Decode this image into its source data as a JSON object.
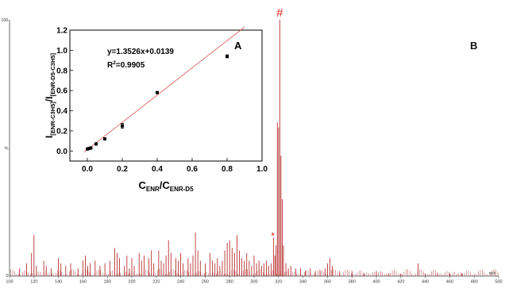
{
  "chart_data": [
    {
      "type": "bar",
      "panel_label": "B",
      "xunit": "m/z",
      "xlim": [
        100,
        500
      ],
      "ylim": [
        0,
        100
      ],
      "x_ticks": [
        100,
        120,
        140,
        160,
        180,
        200,
        220,
        240,
        260,
        280,
        300,
        320,
        340,
        360,
        380,
        400,
        420,
        440,
        460,
        480,
        500
      ],
      "y_tick_labels": [
        "100",
        "%",
        "0"
      ],
      "markers": [
        {
          "symbol": "#",
          "x": 321,
          "y": 100
        },
        {
          "symbol": "*",
          "x": 316,
          "y": 15
        }
      ],
      "peaks": [
        {
          "x": 108,
          "y": 3
        },
        {
          "x": 114,
          "y": 5
        },
        {
          "x": 118,
          "y": 9
        },
        {
          "x": 120,
          "y": 16
        },
        {
          "x": 122,
          "y": 4
        },
        {
          "x": 128,
          "y": 6
        },
        {
          "x": 130,
          "y": 4
        },
        {
          "x": 134,
          "y": 3
        },
        {
          "x": 140,
          "y": 7
        },
        {
          "x": 142,
          "y": 5
        },
        {
          "x": 146,
          "y": 4
        },
        {
          "x": 150,
          "y": 5
        },
        {
          "x": 156,
          "y": 3
        },
        {
          "x": 160,
          "y": 6
        },
        {
          "x": 162,
          "y": 8
        },
        {
          "x": 164,
          "y": 4
        },
        {
          "x": 166,
          "y": 5
        },
        {
          "x": 170,
          "y": 6
        },
        {
          "x": 174,
          "y": 4
        },
        {
          "x": 178,
          "y": 5
        },
        {
          "x": 182,
          "y": 6
        },
        {
          "x": 186,
          "y": 11
        },
        {
          "x": 188,
          "y": 9
        },
        {
          "x": 190,
          "y": 7
        },
        {
          "x": 194,
          "y": 4
        },
        {
          "x": 196,
          "y": 8
        },
        {
          "x": 198,
          "y": 3
        },
        {
          "x": 200,
          "y": 7
        },
        {
          "x": 202,
          "y": 4
        },
        {
          "x": 206,
          "y": 9
        },
        {
          "x": 208,
          "y": 6
        },
        {
          "x": 210,
          "y": 8
        },
        {
          "x": 214,
          "y": 7
        },
        {
          "x": 216,
          "y": 10
        },
        {
          "x": 218,
          "y": 5
        },
        {
          "x": 222,
          "y": 10
        },
        {
          "x": 224,
          "y": 6
        },
        {
          "x": 226,
          "y": 5
        },
        {
          "x": 228,
          "y": 8
        },
        {
          "x": 230,
          "y": 14
        },
        {
          "x": 232,
          "y": 9
        },
        {
          "x": 236,
          "y": 7
        },
        {
          "x": 238,
          "y": 6
        },
        {
          "x": 240,
          "y": 9
        },
        {
          "x": 242,
          "y": 5
        },
        {
          "x": 246,
          "y": 7
        },
        {
          "x": 248,
          "y": 5
        },
        {
          "x": 250,
          "y": 8
        },
        {
          "x": 252,
          "y": 17
        },
        {
          "x": 254,
          "y": 10
        },
        {
          "x": 256,
          "y": 6
        },
        {
          "x": 260,
          "y": 5
        },
        {
          "x": 264,
          "y": 9
        },
        {
          "x": 266,
          "y": 6
        },
        {
          "x": 268,
          "y": 5
        },
        {
          "x": 270,
          "y": 7
        },
        {
          "x": 272,
          "y": 4
        },
        {
          "x": 274,
          "y": 6
        },
        {
          "x": 276,
          "y": 10
        },
        {
          "x": 278,
          "y": 13
        },
        {
          "x": 280,
          "y": 14
        },
        {
          "x": 282,
          "y": 11
        },
        {
          "x": 284,
          "y": 9
        },
        {
          "x": 286,
          "y": 16
        },
        {
          "x": 288,
          "y": 10
        },
        {
          "x": 290,
          "y": 7
        },
        {
          "x": 292,
          "y": 6
        },
        {
          "x": 294,
          "y": 9
        },
        {
          "x": 296,
          "y": 6
        },
        {
          "x": 298,
          "y": 4
        },
        {
          "x": 300,
          "y": 8
        },
        {
          "x": 302,
          "y": 5
        },
        {
          "x": 304,
          "y": 6
        },
        {
          "x": 306,
          "y": 4
        },
        {
          "x": 308,
          "y": 5
        },
        {
          "x": 310,
          "y": 6
        },
        {
          "x": 312,
          "y": 4
        },
        {
          "x": 314,
          "y": 5
        },
        {
          "x": 316,
          "y": 15
        },
        {
          "x": 317,
          "y": 8
        },
        {
          "x": 318,
          "y": 12
        },
        {
          "x": 319,
          "y": 60
        },
        {
          "x": 320,
          "y": 58
        },
        {
          "x": 321,
          "y": 100
        },
        {
          "x": 322,
          "y": 47
        },
        {
          "x": 323,
          "y": 30
        },
        {
          "x": 324,
          "y": 12
        },
        {
          "x": 326,
          "y": 5
        },
        {
          "x": 328,
          "y": 3
        },
        {
          "x": 330,
          "y": 4
        },
        {
          "x": 334,
          "y": 3
        },
        {
          "x": 338,
          "y": 3
        },
        {
          "x": 342,
          "y": 2
        },
        {
          "x": 346,
          "y": 3
        },
        {
          "x": 350,
          "y": 2
        },
        {
          "x": 354,
          "y": 2
        },
        {
          "x": 358,
          "y": 3
        },
        {
          "x": 360,
          "y": 5
        },
        {
          "x": 362,
          "y": 7
        },
        {
          "x": 364,
          "y": 4
        },
        {
          "x": 370,
          "y": 2
        },
        {
          "x": 380,
          "y": 2
        },
        {
          "x": 390,
          "y": 1
        },
        {
          "x": 400,
          "y": 2
        },
        {
          "x": 410,
          "y": 1
        },
        {
          "x": 420,
          "y": 1
        },
        {
          "x": 434,
          "y": 5
        },
        {
          "x": 440,
          "y": 1
        },
        {
          "x": 450,
          "y": 1
        },
        {
          "x": 460,
          "y": 1
        },
        {
          "x": 470,
          "y": 1
        }
      ]
    },
    {
      "type": "scatter",
      "panel_label": "A",
      "xlabel": {
        "main": "C",
        "sub1": "ENR",
        "mid": "/C",
        "sub2": "ENR-D5"
      },
      "ylabel": {
        "main1": "I",
        "sub1": "[ENR-C3H5]",
        "mid": "/I",
        "sub2": "[ENR-D5-C3H5]"
      },
      "xlim": [
        -0.1,
        1.0
      ],
      "ylim": [
        -0.1,
        1.2
      ],
      "x_ticks": [
        "0.0",
        "0.2",
        "0.4",
        "0.6",
        "0.8",
        "1.0"
      ],
      "y_ticks": [
        "0.0",
        "0.2",
        "0.4",
        "0.6",
        "0.8",
        "1.0",
        "1.2"
      ],
      "equation": "y=1.3526x+0.0139",
      "r2_label": {
        "main": "R",
        "sup": "2",
        "value": "=0.9905"
      },
      "fit": {
        "slope": 1.3526,
        "intercept": 0.0139
      },
      "points": [
        {
          "x": 0.0,
          "y": 0.02,
          "err": 0.005
        },
        {
          "x": 0.01,
          "y": 0.025,
          "err": 0.005
        },
        {
          "x": 0.02,
          "y": 0.03,
          "err": 0.005
        },
        {
          "x": 0.05,
          "y": 0.07,
          "err": 0.008
        },
        {
          "x": 0.1,
          "y": 0.12,
          "err": 0.01
        },
        {
          "x": 0.2,
          "y": 0.25,
          "err": 0.025
        },
        {
          "x": 0.4,
          "y": 0.58,
          "err": 0.01
        },
        {
          "x": 0.8,
          "y": 0.94,
          "err": 0.015
        }
      ]
    }
  ]
}
